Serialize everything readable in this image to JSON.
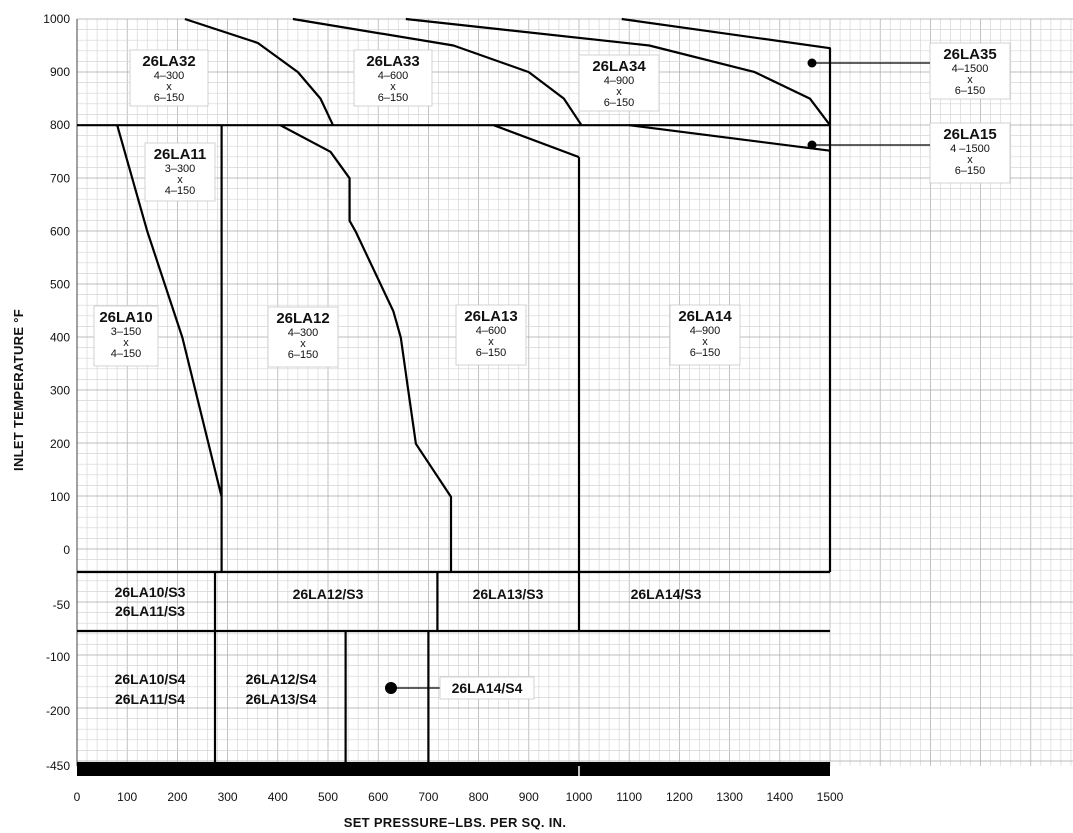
{
  "chart_data": {
    "type": "area",
    "xlabel": "SET PRESSURE–LBS. PER SQ. IN.",
    "ylabel": "INLET TEMPERATURE °F",
    "xlim": [
      0,
      1500
    ],
    "ylim": [
      -450,
      1000
    ],
    "x_ticks": [
      "0",
      "100",
      "200",
      "300",
      "400",
      "500",
      "600",
      "700",
      "800",
      "900",
      "1000",
      "1100",
      "1200",
      "1300",
      "1400",
      "1500"
    ],
    "y_ticks": [
      "1000",
      "900",
      "800",
      "700",
      "600",
      "500",
      "400",
      "300",
      "200",
      "100",
      "0",
      "-50",
      "-100",
      "-200",
      "-450"
    ],
    "grid": true,
    "regions": [
      {
        "name": "26LA32",
        "size_top": "4–300",
        "size_x": "x",
        "size_bottom": "6–150"
      },
      {
        "name": "26LA33",
        "size_top": "4–600",
        "size_x": "x",
        "size_bottom": "6–150"
      },
      {
        "name": "26LA34",
        "size_top": "4–900",
        "size_x": "x",
        "size_bottom": "6–150"
      },
      {
        "name": "26LA35",
        "size_top": "4–1500",
        "size_x": "x",
        "size_bottom": "6–150"
      },
      {
        "name": "26LA15",
        "size_top": "4 –1500",
        "size_x": "x",
        "size_bottom": "6–150"
      },
      {
        "name": "26LA11",
        "size_top": "3–300",
        "size_x": "x",
        "size_bottom": "4–150"
      },
      {
        "name": "26LA10",
        "size_top": "3–150",
        "size_x": "x",
        "size_bottom": "4–150"
      },
      {
        "name": "26LA12",
        "size_top": "4–300",
        "size_x": "x",
        "size_bottom": "6–150"
      },
      {
        "name": "26LA13",
        "size_top": "4–600",
        "size_x": "x",
        "size_bottom": "6–150"
      },
      {
        "name": "26LA14",
        "size_top": "4–900",
        "size_x": "x",
        "size_bottom": "6–150"
      }
    ],
    "s3_labels": [
      "26LA10/S3",
      "26LA11/S3",
      "26LA12/S3",
      "26LA13/S3",
      "26LA14/S3"
    ],
    "s4_labels": [
      "26LA10/S4",
      "26LA11/S4",
      "26LA12/S4",
      "26LA13/S4",
      "26LA14/S4"
    ],
    "boundaries": {
      "y800_line": [
        [
          0,
          800
        ],
        [
          1500,
          800
        ]
      ],
      "frame_1500": [
        [
          1500,
          800
        ],
        [
          1500,
          -20
        ]
      ],
      "s3_top": [
        [
          0,
          -20
        ],
        [
          1500,
          -20
        ]
      ],
      "s3_bottom": [
        [
          0,
          -75
        ],
        [
          1500,
          -75
        ]
      ],
      "v288": [
        [
          288,
          800
        ],
        [
          288,
          -20
        ]
      ],
      "v1000": [
        [
          1000,
          740
        ],
        [
          1000,
          -75
        ]
      ],
      "s3_div1": [
        [
          275,
          -20
        ],
        [
          275,
          -75
        ]
      ],
      "s3_div2": [
        [
          718,
          -20
        ],
        [
          718,
          -75
        ]
      ],
      "s4_div1": [
        [
          275,
          -75
        ],
        [
          275,
          -450
        ]
      ],
      "s4_div2": [
        [
          535,
          -75
        ],
        [
          535,
          -450
        ]
      ],
      "s4_div3": [
        [
          700,
          -75
        ],
        [
          700,
          -450
        ]
      ],
      "c10": [
        [
          80,
          800
        ],
        [
          140,
          600
        ],
        [
          210,
          400
        ],
        [
          288,
          100
        ]
      ],
      "c12": [
        [
          405,
          800
        ],
        [
          505,
          750
        ],
        [
          543,
          700
        ],
        [
          543,
          620
        ],
        [
          555,
          600
        ],
        [
          605,
          500
        ],
        [
          630,
          450
        ],
        [
          645,
          400
        ],
        [
          660,
          300
        ],
        [
          675,
          200
        ],
        [
          745,
          100
        ],
        [
          745,
          -20
        ]
      ],
      "c13": [
        [
          830,
          800
        ],
        [
          1000,
          740
        ]
      ],
      "c32": [
        [
          215,
          1000
        ],
        [
          360,
          955
        ],
        [
          440,
          900
        ],
        [
          485,
          850
        ],
        [
          510,
          800
        ]
      ],
      "c33": [
        [
          430,
          1000
        ],
        [
          750,
          950
        ],
        [
          900,
          900
        ],
        [
          970,
          850
        ],
        [
          1005,
          800
        ]
      ],
      "c34": [
        [
          655,
          1000
        ],
        [
          1140,
          950
        ],
        [
          1350,
          900
        ],
        [
          1460,
          850
        ],
        [
          1500,
          800
        ]
      ],
      "c35": [
        [
          1085,
          1000
        ],
        [
          1500,
          945
        ],
        [
          1500,
          800
        ]
      ],
      "c15": [
        [
          1100,
          800
        ],
        [
          1500,
          752
        ]
      ]
    }
  }
}
